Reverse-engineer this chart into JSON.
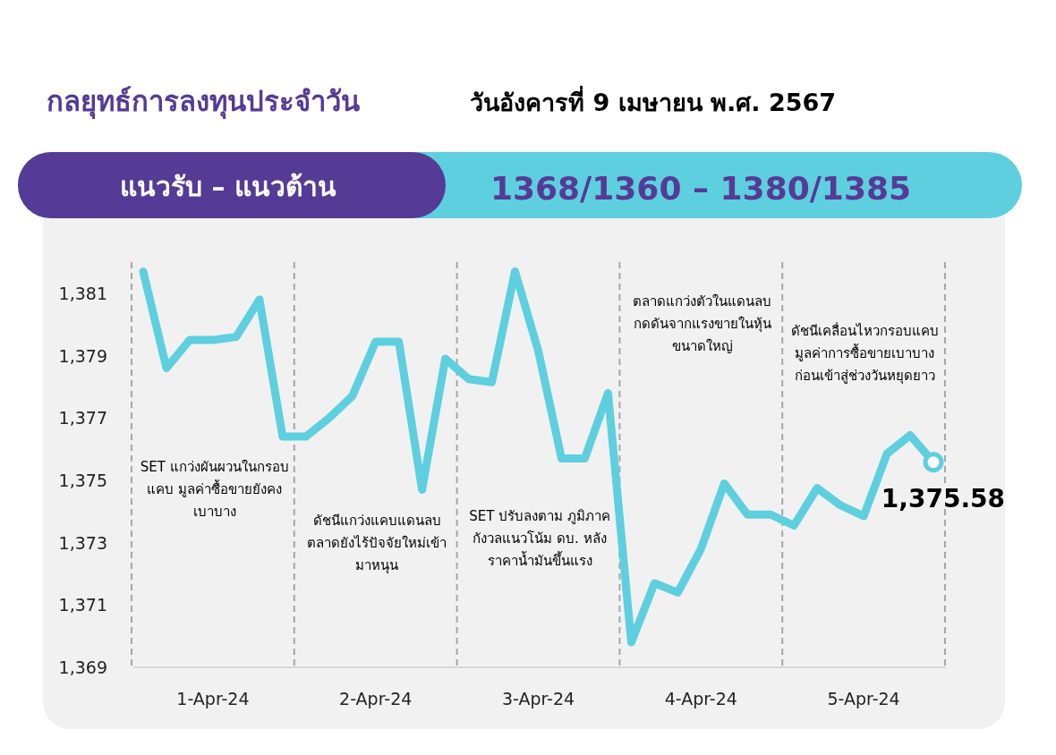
{
  "chart_data": {
    "type": "line",
    "title": "กลยุทธ์การลงทุนประจำวัน",
    "subtitle": "วันอังคารที่ 9 เมษายน พ.ศ. 2567",
    "annotations": [
      "แนวรับ – แนวต้าน",
      "1368/1360  – 1380/1385",
      "SET แกว่งผันผวนในกรอบแคบ มูลค่าซื้อขายยังคงเบาบาง",
      "ดัชนีแกว่งแคบแดนลบ ตลาดยังไร้ปัจจัยใหม่เข้ามาหนุน",
      "SET ปรับลงตาม ภูมิภาค กังวลแนวโน้ม ดบ. หลังราคาน้ำมันขึ้นแรง",
      "ตลาดแกว่งตัวในแดนลบ กดดันจากแรงขายในหุ้นขนาดใหญ่",
      "ดัชนีเคลื่อนไหวกรอบแคบ มูลค่าการซื้อขายเบาบางก่อนเข้าสู่ช่วงวันหยุดยาว"
    ],
    "categories": [
      null,
      null,
      null,
      "1-Apr-24",
      null,
      null,
      null,
      null,
      null,
      null,
      "2-Apr-24",
      null,
      null,
      null,
      null,
      null,
      null,
      "3-Apr-24",
      null,
      null,
      null,
      null,
      null,
      null,
      "4-Apr-24",
      null,
      null,
      null,
      null,
      null,
      null,
      "5-Apr-24",
      null,
      null,
      null
    ],
    "ylim": [
      1369,
      1382
    ],
    "yticks": [
      {
        "value": 1369,
        "label": "1,369"
      },
      {
        "value": 1371,
        "label": "1,371"
      },
      {
        "value": 1373,
        "label": "1,373"
      },
      {
        "value": 1375,
        "label": "1,375"
      },
      {
        "value": 1377,
        "label": "1,377"
      },
      {
        "value": 1379,
        "label": "1,379"
      },
      {
        "value": 1381,
        "label": "1,381"
      }
    ],
    "marker": "none",
    "line_style": "solid",
    "series": [
      {
        "color": "#5ecfdf",
        "values": [
          1381.7,
          1378.6,
          1379.5,
          1379.5,
          1379.6,
          1380.8,
          1376.4,
          1376.4,
          1377.0,
          1377.7,
          1379.45,
          1379.45,
          1374.7,
          1378.9,
          1378.25,
          1378.15,
          1381.7,
          1379.15,
          1375.7,
          1375.7,
          1377.8,
          1369.8,
          1371.7,
          1371.4,
          1372.8,
          1374.9,
          1373.9,
          1373.9,
          1373.55,
          1374.75,
          1374.2,
          1373.85,
          1375.85,
          1376.45,
          1375.58
        ],
        "value_labels": [
          null,
          null,
          null,
          null,
          null,
          null,
          null,
          null,
          null,
          null,
          null,
          null,
          null,
          null,
          null,
          null,
          null,
          null,
          null,
          null,
          null,
          null,
          null,
          null,
          null,
          null,
          null,
          null,
          null,
          null,
          null,
          null,
          null,
          null,
          "1,375.58"
        ]
      }
    ]
  }
}
